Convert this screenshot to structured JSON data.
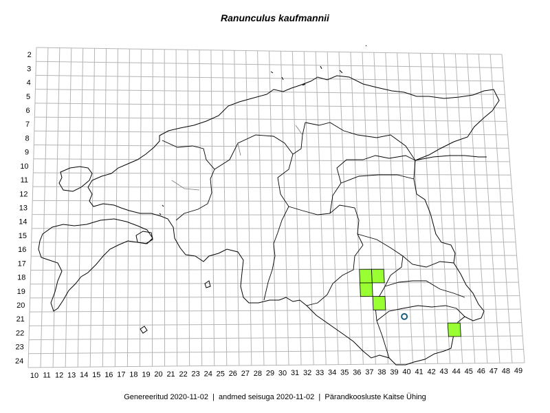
{
  "title": "Ranunculus kaufmannii",
  "footer": {
    "generated_label": "Genereeritud",
    "generated_date": "2020-11-02",
    "data_label": "andmed seisuga",
    "data_date": "2020-11-02",
    "organization": "Pärandkoosluste Kaitse Ühing",
    "separator": "|"
  },
  "grid": {
    "columns": [
      "10",
      "11",
      "12",
      "13",
      "14",
      "15",
      "16",
      "17",
      "18",
      "19",
      "20",
      "21",
      "22",
      "23",
      "24",
      "25",
      "26",
      "27",
      "28",
      "29",
      "30",
      "31",
      "32",
      "33",
      "34",
      "35",
      "36",
      "37",
      "38",
      "39",
      "40",
      "41",
      "42",
      "43",
      "44",
      "45",
      "46",
      "47",
      "48",
      "49"
    ],
    "rows": [
      "2",
      "3",
      "4",
      "5",
      "6",
      "7",
      "8",
      "9",
      "10",
      "11",
      "12",
      "13",
      "14",
      "15",
      "16",
      "17",
      "18",
      "19",
      "20",
      "21",
      "22",
      "23",
      "24"
    ]
  },
  "occurrences": {
    "present_color": "#99ff33",
    "historic_marker_color": "#1a5e80",
    "present": [
      {
        "col": "37",
        "row": "18"
      },
      {
        "col": "38",
        "row": "18"
      },
      {
        "col": "37",
        "row": "19"
      },
      {
        "col": "38",
        "row": "20"
      },
      {
        "col": "44",
        "row": "22"
      }
    ],
    "historic": [
      {
        "col": "40",
        "row": "21"
      }
    ]
  }
}
